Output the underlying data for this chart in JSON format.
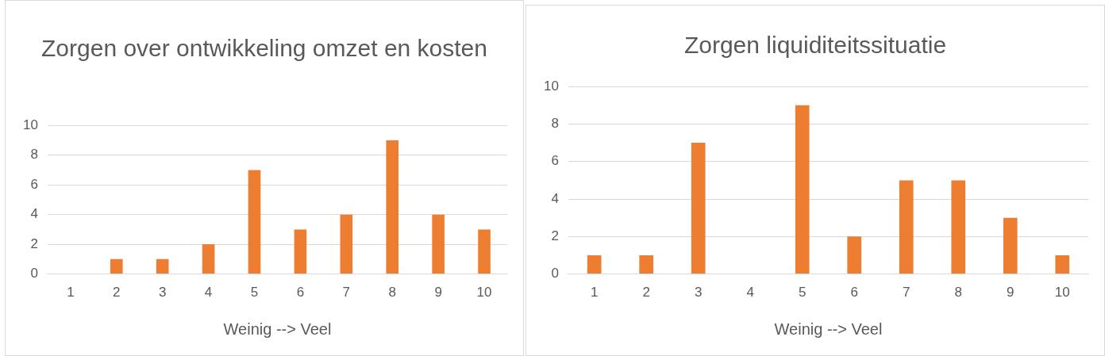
{
  "chart_data": [
    {
      "type": "bar",
      "title": "Zorgen over ontwikkeling omzet en kosten",
      "xlabel": "Weinig --> Veel",
      "categories": [
        "1",
        "2",
        "3",
        "4",
        "5",
        "6",
        "7",
        "8",
        "9",
        "10"
      ],
      "values": [
        0,
        1,
        1,
        2,
        7,
        3,
        4,
        9,
        4,
        3
      ],
      "color": "#ed7d31",
      "ylim": [
        0,
        10
      ],
      "yticks": [
        0,
        2,
        4,
        6,
        8,
        10
      ],
      "grid": "y",
      "legend": false
    },
    {
      "type": "bar",
      "title": "Zorgen liquiditeitssituatie",
      "xlabel": "Weinig --> Veel",
      "categories": [
        "1",
        "2",
        "3",
        "4",
        "5",
        "6",
        "7",
        "8",
        "9",
        "10"
      ],
      "values": [
        1,
        1,
        7,
        0,
        9,
        2,
        5,
        5,
        3,
        1
      ],
      "color": "#ed7d31",
      "ylim": [
        0,
        10
      ],
      "yticks": [
        0,
        2,
        4,
        6,
        8,
        10
      ],
      "grid": "y",
      "legend": false
    }
  ]
}
